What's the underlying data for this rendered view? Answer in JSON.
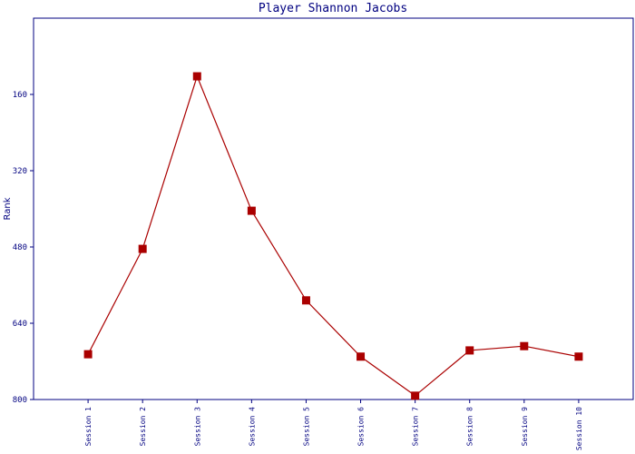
{
  "chart_data": {
    "type": "line",
    "title": "Player Shannon Jacobs",
    "y_label": "Rank",
    "categories": [
      "Session 1",
      "Session 2",
      "Session 3",
      "Session 4",
      "Session 5",
      "Session 6",
      "Session 7",
      "Session 8",
      "Session 9",
      "Session 10"
    ],
    "series": [
      {
        "name": "Rank",
        "color": "#aa0000",
        "values": [
          705,
          484,
          122,
          404,
          592,
          710,
          792,
          697,
          688,
          710
        ]
      }
    ],
    "ylim": [
      800,
      0
    ],
    "yticks": [
      160,
      320,
      480,
      640,
      800
    ]
  }
}
